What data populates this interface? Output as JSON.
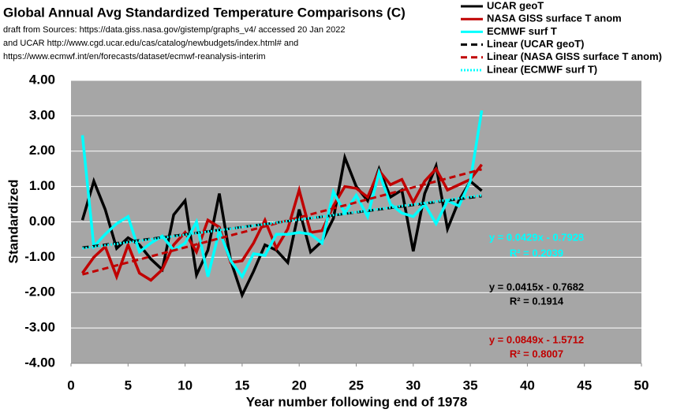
{
  "chart_data": {
    "type": "line",
    "title": "Global Annual Avg Standardized Temperature Comparisons (C)",
    "subtitle": [
      "draft from Sources: https://data.giss.nasa.gov/gistemp/graphs_v4/ accessed 20 Jan 2022",
      "and UCAR http://www.cgd.ucar.edu/cas/catalog/newbudgets/index.html#   and",
      "https://www.ecmwf.int/en/forecasts/dataset/ecmwf-reanalysis-interim"
    ],
    "x_label": "Year number following end of 1978",
    "y_label": "Standardized",
    "xlim": [
      0,
      50
    ],
    "xticks": [
      0,
      5,
      10,
      15,
      20,
      25,
      30,
      35,
      40,
      45,
      50
    ],
    "ylim": [
      -4,
      4
    ],
    "yticks": [
      {
        "value": -4,
        "label": "-4.00"
      },
      {
        "value": -3,
        "label": "-3.00"
      },
      {
        "value": -2,
        "label": "-2.00"
      },
      {
        "value": -1,
        "label": "-1.00"
      },
      {
        "value": 0,
        "label": "0.00"
      },
      {
        "value": 1,
        "label": "1.00"
      },
      {
        "value": 2,
        "label": "2.00"
      },
      {
        "value": 3,
        "label": "3.00"
      },
      {
        "value": 4,
        "label": "4.00"
      }
    ],
    "grid": true,
    "x": [
      1,
      2,
      3,
      4,
      5,
      6,
      7,
      8,
      9,
      10,
      11,
      12,
      13,
      14,
      15,
      16,
      17,
      18,
      19,
      20,
      21,
      22,
      23,
      24,
      25,
      26,
      27,
      28,
      29,
      30,
      31,
      32,
      33,
      34,
      35,
      36
    ],
    "series": [
      {
        "name": "UCAR geoT",
        "color": "#000000",
        "dash": "solid",
        "values": [
          0.05,
          1.15,
          0.35,
          -0.75,
          -0.45,
          -0.65,
          -1.05,
          -1.35,
          0.2,
          0.6,
          -1.5,
          -0.8,
          0.8,
          -1.1,
          -2.07,
          -1.4,
          -0.65,
          -0.8,
          -1.15,
          0.35,
          -0.85,
          -0.55,
          0.1,
          1.82,
          1.0,
          0.6,
          1.5,
          0.7,
          0.9,
          -0.83,
          0.8,
          1.58,
          -0.2,
          0.6,
          1.15,
          0.88
        ]
      },
      {
        "name": "NASA GISS surface T anom",
        "color": "#c00000",
        "dash": "solid",
        "values": [
          -1.45,
          -1.0,
          -0.7,
          -1.55,
          -0.65,
          -1.45,
          -1.65,
          -1.35,
          -0.65,
          -0.3,
          -0.85,
          0.05,
          -0.15,
          -1.15,
          -1.1,
          -0.6,
          0.05,
          -0.75,
          -0.2,
          0.9,
          -0.3,
          -0.25,
          0.45,
          1.0,
          0.95,
          0.7,
          1.45,
          1.05,
          1.2,
          0.55,
          1.15,
          1.5,
          0.9,
          1.05,
          1.2,
          1.62
        ]
      },
      {
        "name": "ECMWF surf T",
        "color": "#00ffff",
        "dash": "solid",
        "values": [
          2.45,
          -0.7,
          -0.35,
          -0.05,
          0.15,
          -0.85,
          -0.6,
          -0.4,
          -0.8,
          -0.6,
          0.0,
          -1.55,
          -0.25,
          -1.1,
          -1.55,
          -0.9,
          -0.95,
          -0.35,
          -0.35,
          -0.3,
          -0.35,
          -0.6,
          0.85,
          0.25,
          0.75,
          0.15,
          1.4,
          0.5,
          0.25,
          0.15,
          0.5,
          -0.05,
          0.6,
          0.45,
          1.15,
          3.15
        ]
      },
      {
        "name": "Linear (UCAR geoT)",
        "color": "#000000",
        "dash": "dashed",
        "x": [
          1,
          36
        ],
        "values": [
          -0.727,
          0.726
        ]
      },
      {
        "name": "Linear (NASA GISS surface T anom)",
        "color": "#c00000",
        "dash": "dashed",
        "x": [
          1,
          36
        ],
        "values": [
          -1.486,
          1.485
        ]
      },
      {
        "name": "Linear (ECMWF surf T)",
        "color": "#00ffff",
        "dash": "dotted",
        "x": [
          1,
          36
        ],
        "values": [
          -0.75,
          0.751
        ]
      }
    ],
    "annotations": [
      {
        "text": "y = 0.0429x - 0.7928",
        "color": "#00ffff"
      },
      {
        "text": "R² = 0.2039",
        "color": "#00ffff"
      },
      {
        "text": "y = 0.0415x - 0.7682",
        "color": "#000000"
      },
      {
        "text": "R² = 0.1914",
        "color": "#000000"
      },
      {
        "text": "y = 0.0849x - 1.5712",
        "color": "#c00000"
      },
      {
        "text": "R² = 0.8007",
        "color": "#c00000"
      }
    ]
  }
}
